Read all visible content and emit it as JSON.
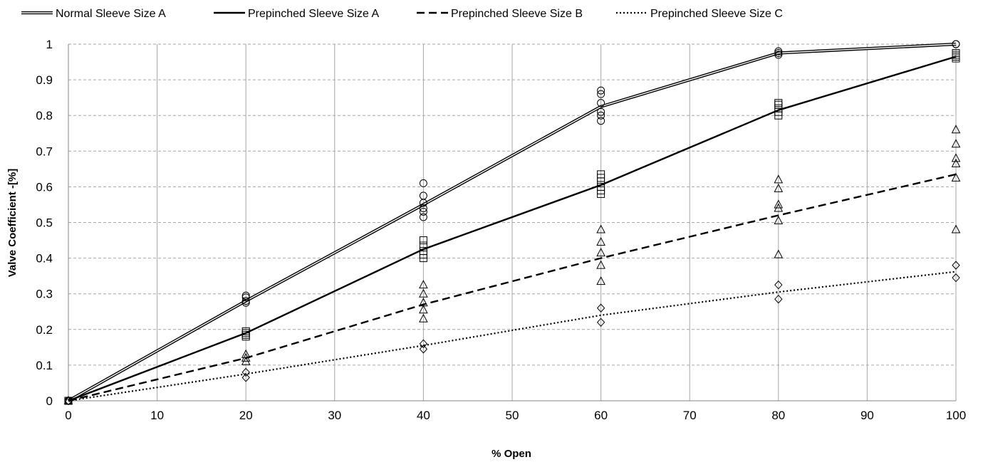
{
  "chart_data": {
    "type": "line",
    "title": "",
    "xlabel": "% Open",
    "ylabel": "Valve Coefficient -[%]",
    "xlim": [
      0,
      100
    ],
    "ylim": [
      0,
      1
    ],
    "xticks": [
      0,
      10,
      20,
      30,
      40,
      50,
      60,
      70,
      80,
      90,
      100
    ],
    "xtick_labels": [
      "0",
      "10",
      "20",
      "30",
      "40",
      "50",
      "60",
      "70",
      "80",
      "90",
      "100"
    ],
    "yticks": [
      0,
      0.1,
      0.2,
      0.3,
      0.4,
      0.5,
      0.6,
      0.7,
      0.8,
      0.9,
      1
    ],
    "ytick_labels": [
      "0",
      "0.1",
      "0.2",
      "0.3",
      "0.4",
      "0.5",
      "0.6",
      "0.7",
      "0.8",
      "0.9",
      "1"
    ],
    "grid": true,
    "legend_position": "top",
    "series": [
      {
        "name": "Normal Sleeve Size A",
        "line_style": "double",
        "marker": "circle",
        "x": [
          0,
          20,
          40,
          60,
          80,
          100
        ],
        "y": [
          0,
          0.28,
          0.55,
          0.825,
          0.975,
          1.0
        ],
        "observations": [
          {
            "x": 0,
            "y": [
              0,
              0,
              0,
              0,
              0
            ]
          },
          {
            "x": 20,
            "y": [
              0.275,
              0.28,
              0.29,
              0.295
            ]
          },
          {
            "x": 40,
            "y": [
              0.515,
              0.53,
              0.54,
              0.555,
              0.575,
              0.61
            ]
          },
          {
            "x": 60,
            "y": [
              0.785,
              0.8,
              0.81,
              0.835,
              0.86,
              0.87
            ]
          },
          {
            "x": 80,
            "y": [
              0.97,
              0.975,
              0.98
            ]
          },
          {
            "x": 100,
            "y": [
              1.0,
              1.0
            ]
          }
        ]
      },
      {
        "name": "Prepinched Sleeve Size A",
        "line_style": "solid",
        "marker": "square",
        "x": [
          0,
          20,
          40,
          60,
          80,
          100
        ],
        "y": [
          0,
          0.19,
          0.425,
          0.605,
          0.815,
          0.965
        ],
        "observations": [
          {
            "x": 0,
            "y": [
              0,
              0
            ]
          },
          {
            "x": 20,
            "y": [
              0.18,
              0.185,
              0.19,
              0.195
            ]
          },
          {
            "x": 40,
            "y": [
              0.4,
              0.41,
              0.42,
              0.435,
              0.45
            ]
          },
          {
            "x": 60,
            "y": [
              0.58,
              0.59,
              0.6,
              0.615,
              0.625,
              0.635
            ]
          },
          {
            "x": 80,
            "y": [
              0.8,
              0.81,
              0.82,
              0.83,
              0.835
            ]
          },
          {
            "x": 100,
            "y": [
              0.96,
              0.965,
              0.97,
              0.975
            ]
          }
        ]
      },
      {
        "name": "Prepinched Sleeve Size B",
        "line_style": "dashed",
        "marker": "triangle",
        "x": [
          0,
          20,
          40,
          60,
          80,
          100
        ],
        "y": [
          0,
          0.12,
          0.27,
          0.4,
          0.52,
          0.635
        ],
        "observations": [
          {
            "x": 0,
            "y": [
              0
            ]
          },
          {
            "x": 20,
            "y": [
              0.11,
              0.12,
              0.13
            ]
          },
          {
            "x": 40,
            "y": [
              0.23,
              0.255,
              0.275,
              0.3,
              0.325
            ]
          },
          {
            "x": 60,
            "y": [
              0.335,
              0.38,
              0.415,
              0.445,
              0.48
            ]
          },
          {
            "x": 80,
            "y": [
              0.41,
              0.505,
              0.54,
              0.55,
              0.595,
              0.62
            ]
          },
          {
            "x": 100,
            "y": [
              0.48,
              0.625,
              0.665,
              0.68,
              0.72,
              0.76
            ]
          }
        ]
      },
      {
        "name": "Prepinched Sleeve Size C",
        "line_style": "dotted",
        "marker": "diamond",
        "x": [
          0,
          20,
          40,
          60,
          80,
          100
        ],
        "y": [
          0,
          0.075,
          0.155,
          0.24,
          0.305,
          0.362
        ],
        "observations": [
          {
            "x": 0,
            "y": [
              0
            ]
          },
          {
            "x": 20,
            "y": [
              0.065,
              0.08
            ]
          },
          {
            "x": 40,
            "y": [
              0.145,
              0.16
            ]
          },
          {
            "x": 60,
            "y": [
              0.22,
              0.26
            ]
          },
          {
            "x": 80,
            "y": [
              0.285,
              0.325
            ]
          },
          {
            "x": 100,
            "y": [
              0.345,
              0.38
            ]
          }
        ]
      }
    ]
  }
}
